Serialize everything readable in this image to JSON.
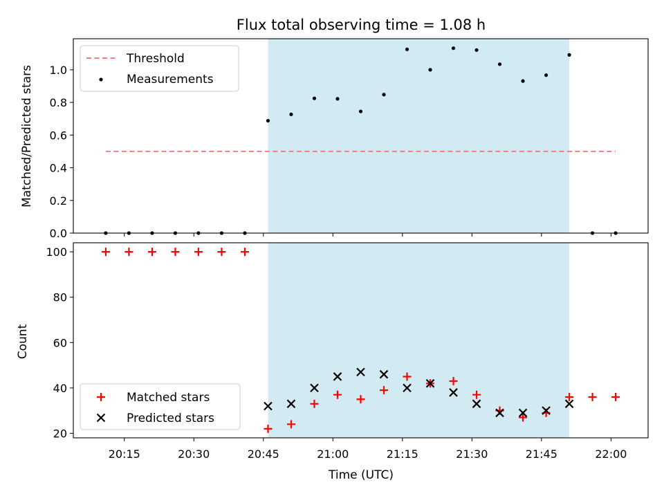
{
  "chart_data": [
    {
      "type": "scatter",
      "title": "Flux total observing time = 1.08 h",
      "xlabel": "",
      "ylabel": "Matched/Predicted stars",
      "ylim": [
        0,
        1.19
      ],
      "yticks": [
        0.0,
        0.2,
        0.4,
        0.6,
        0.8,
        1.0
      ],
      "ytick_labels": [
        "0.0",
        "0.2",
        "0.4",
        "0.6",
        "0.8",
        "1.0"
      ],
      "legend_position": "top-left",
      "grid": false,
      "shaded_interval": [
        "20:46",
        "21:51"
      ],
      "shade_color": "#add8e6",
      "threshold": {
        "name": "Threshold",
        "value": 0.5,
        "x_range": [
          "20:11",
          "22:01"
        ],
        "color": "#f07f7f",
        "style": "dashed"
      },
      "series": [
        {
          "name": "Measurements",
          "color": "#000000",
          "marker": "dot",
          "x": [
            "20:11",
            "20:16",
            "20:21",
            "20:26",
            "20:31",
            "20:36",
            "20:41",
            "20:46",
            "20:51",
            "20:56",
            "21:01",
            "21:06",
            "21:11",
            "21:16",
            "21:21",
            "21:26",
            "21:31",
            "21:36",
            "21:41",
            "21:46",
            "21:51",
            "21:56",
            "22:01"
          ],
          "y": [
            0,
            0,
            0,
            0,
            0,
            0,
            0,
            0.688,
            0.727,
            0.825,
            0.822,
            0.745,
            0.848,
            1.125,
            1.0,
            1.132,
            1.121,
            1.034,
            0.931,
            0.967,
            1.091,
            0,
            0
          ]
        }
      ]
    },
    {
      "type": "scatter",
      "title": "",
      "xlabel": "Time (UTC)",
      "ylabel": "Count",
      "ylim": [
        18,
        104
      ],
      "yticks": [
        20,
        40,
        60,
        80,
        100
      ],
      "ytick_labels": [
        "20",
        "40",
        "60",
        "80",
        "100"
      ],
      "xlim": [
        "20:04",
        "22:08"
      ],
      "xticks": [
        "20:15",
        "20:30",
        "20:45",
        "21:00",
        "21:15",
        "21:30",
        "21:45",
        "22:00"
      ],
      "legend_position": "bottom-left",
      "grid": false,
      "shaded_interval": [
        "20:46",
        "21:51"
      ],
      "shade_color": "#add8e6",
      "series": [
        {
          "name": "Matched stars",
          "color": "#ff0000",
          "marker": "plus",
          "x": [
            "20:11",
            "20:16",
            "20:21",
            "20:26",
            "20:31",
            "20:36",
            "20:41",
            "20:46",
            "20:51",
            "20:56",
            "21:01",
            "21:06",
            "21:11",
            "21:16",
            "21:21",
            "21:26",
            "21:31",
            "21:36",
            "21:41",
            "21:46",
            "21:51",
            "21:56",
            "22:01"
          ],
          "y": [
            100,
            100,
            100,
            100,
            100,
            100,
            100,
            22,
            24,
            33,
            37,
            35,
            39,
            45,
            42,
            43,
            37,
            30,
            27,
            29,
            36,
            36,
            36
          ]
        },
        {
          "name": "Predicted stars",
          "color": "#000000",
          "marker": "x",
          "x": [
            "20:46",
            "20:51",
            "20:56",
            "21:01",
            "21:06",
            "21:11",
            "21:16",
            "21:21",
            "21:26",
            "21:31",
            "21:36",
            "21:41",
            "21:46",
            "21:51"
          ],
          "y": [
            32,
            33,
            40,
            45,
            47,
            46,
            40,
            42,
            38,
            33,
            29,
            29,
            30,
            33
          ]
        }
      ]
    }
  ]
}
